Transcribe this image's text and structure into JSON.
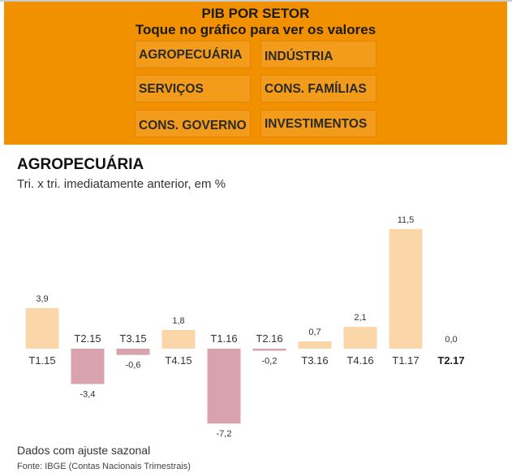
{
  "header": {
    "title": "PIB POR SETOR",
    "subtitle": "Toque no gráfico para ver os valores"
  },
  "buttons": [
    "AGROPECUÁRIA",
    "INDÚSTRIA",
    "SERVIÇOS",
    "CONS. FAMÍLIAS",
    "CONS. GOVERNO",
    "INVESTIMENTOS"
  ],
  "colors": {
    "panel": "#F29100",
    "positive": "#FAD6A8",
    "negative": "#D9A3AD"
  },
  "chart_data": {
    "type": "bar",
    "title": "AGROPECUÁRIA",
    "subtitle": "Tri. x tri. imediatamente anterior, em %",
    "categories": [
      "T1.15",
      "T2.15",
      "T3.15",
      "T4.15",
      "T1.16",
      "T2.16",
      "T3.16",
      "T4.16",
      "T1.17",
      "T2.17"
    ],
    "values": [
      3.9,
      -3.4,
      -0.6,
      1.8,
      -7.2,
      -0.2,
      0.7,
      2.1,
      11.5,
      0.0
    ],
    "value_labels": [
      "3,9",
      "-3,4",
      "-0,6",
      "1,8",
      "-7,2",
      "-0,2",
      "0,7",
      "2,1",
      "11,5",
      "0,0"
    ],
    "highlight": "T2.17",
    "xlabel": "",
    "ylabel": "",
    "grid": false
  },
  "footer": {
    "note": "Dados com ajuste sazonal",
    "source": "Fonte: IBGE (Contas Nacionais Trimestrais)"
  }
}
